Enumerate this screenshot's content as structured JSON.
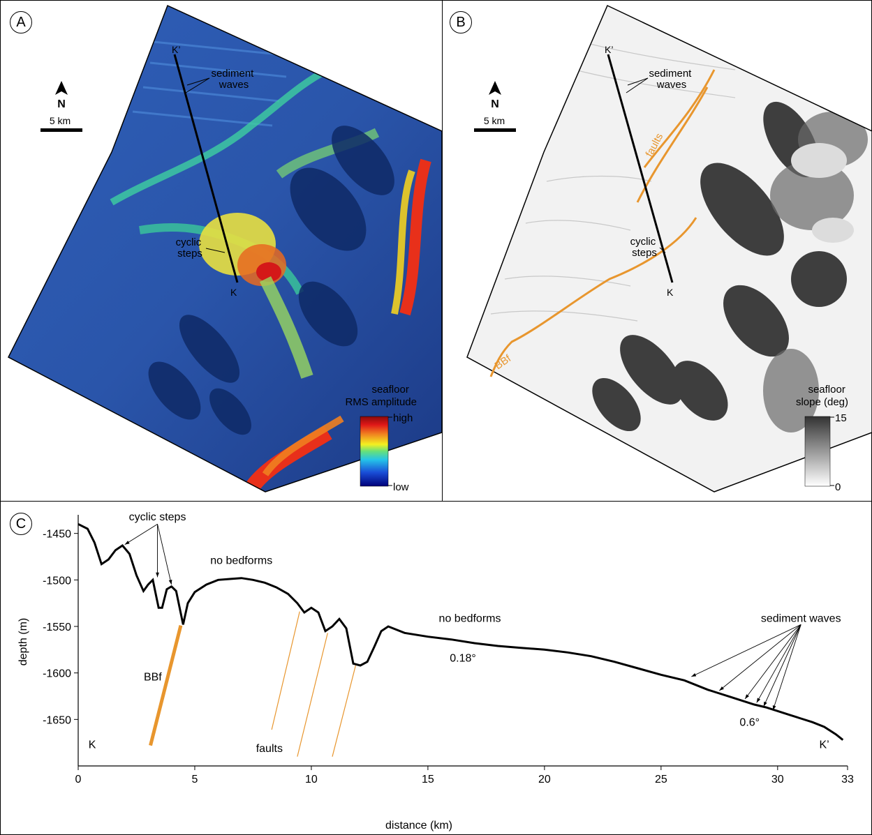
{
  "panels": {
    "a": {
      "letter": "A"
    },
    "b": {
      "letter": "B"
    },
    "c": {
      "letter": "C"
    }
  },
  "maps": {
    "north_label": "N",
    "scale_label": "5 km",
    "line_start_label": "K",
    "line_end_label": "K’",
    "sediment_waves_label": [
      "sediment",
      "waves"
    ],
    "cyclic_steps_label": [
      "cyclic",
      "steps"
    ],
    "faults_label": "faults",
    "bbf_label": "BBf",
    "rms_legend": {
      "title": [
        "seafloor",
        "RMS amplitude"
      ],
      "high": "high",
      "low": "low"
    },
    "slope_legend": {
      "title": [
        "seafloor",
        "slope (deg)"
      ],
      "max": "15",
      "min": "0"
    },
    "fault_color": "#e8962e"
  },
  "chart_data": {
    "type": "line",
    "xlabel": "distance (km)",
    "ylabel": "depth (m)",
    "xlim": [
      0,
      33
    ],
    "ylim": [
      -1700,
      -1430
    ],
    "xticks": [
      0,
      5,
      10,
      15,
      20,
      25,
      30,
      33
    ],
    "yticks": [
      -1450,
      -1500,
      -1550,
      -1600,
      -1650
    ],
    "series": [
      {
        "x": [
          0,
          0.4,
          0.7,
          1.0,
          1.3,
          1.6,
          1.9,
          2.2,
          2.5,
          2.8,
          3.0,
          3.2,
          3.3,
          3.45,
          3.6,
          3.8,
          4.0,
          4.2,
          4.35,
          4.5,
          4.7,
          5.0,
          5.5,
          6.0,
          6.5,
          7.0,
          7.5,
          8.0,
          8.5,
          9.0,
          9.4,
          9.7,
          10.0,
          10.3,
          10.6,
          10.9,
          11.2,
          11.5,
          11.8,
          12.1,
          12.4,
          12.7,
          13.0,
          13.3,
          14,
          15,
          16,
          17,
          18,
          19,
          20,
          21,
          22,
          23,
          24,
          25,
          26,
          27,
          27.5,
          28,
          28.5,
          29,
          29.5,
          30,
          30.5,
          31,
          31.5,
          32,
          32.5,
          32.8
        ],
        "y": [
          -1440,
          -1445,
          -1460,
          -1483,
          -1478,
          -1468,
          -1463,
          -1472,
          -1495,
          -1512,
          -1505,
          -1500,
          -1512,
          -1530,
          -1530,
          -1510,
          -1507,
          -1512,
          -1530,
          -1548,
          -1525,
          -1513,
          -1505,
          -1500,
          -1499,
          -1498,
          -1500,
          -1503,
          -1508,
          -1515,
          -1525,
          -1535,
          -1530,
          -1535,
          -1555,
          -1550,
          -1542,
          -1552,
          -1590,
          -1592,
          -1588,
          -1572,
          -1555,
          -1550,
          -1557,
          -1561,
          -1564,
          -1568,
          -1571,
          -1573,
          -1575,
          -1578,
          -1582,
          -1588,
          -1595,
          -1602,
          -1608,
          -1618,
          -1622,
          -1626,
          -1630,
          -1634,
          -1637,
          -1641,
          -1645,
          -1649,
          -1653,
          -1658,
          -1666,
          -1672
        ]
      }
    ],
    "annotations": [
      {
        "text": "cyclic steps",
        "x": 3.4,
        "y": -1436
      },
      {
        "text": "no bedforms",
        "x": 7.0,
        "y": -1483
      },
      {
        "text": "no bedforms",
        "x": 16.8,
        "y": -1545
      },
      {
        "text": "0.18°",
        "x": 16.5,
        "y": -1588
      },
      {
        "text": "sediment waves",
        "x": 31.0,
        "y": -1545
      },
      {
        "text": "0.6°",
        "x": 28.8,
        "y": -1657
      },
      {
        "text": "BBf",
        "x": 3.2,
        "y": -1608
      },
      {
        "text": "faults",
        "x": 8.2,
        "y": -1685
      },
      {
        "text": "K",
        "x": 0.6,
        "y": -1681
      },
      {
        "text": "K’",
        "x": 32.0,
        "y": -1681
      }
    ],
    "faults": [
      {
        "name": "BBf",
        "top": [
          4.4,
          -1549
        ],
        "bottom": [
          3.1,
          -1678
        ]
      },
      {
        "name": "fault",
        "top": [
          9.5,
          -1534
        ],
        "bottom": [
          8.3,
          -1661
        ]
      },
      {
        "name": "fault",
        "top": [
          10.7,
          -1557
        ],
        "bottom": [
          9.4,
          -1690
        ]
      },
      {
        "name": "fault",
        "top": [
          11.9,
          -1592
        ],
        "bottom": [
          10.9,
          -1690
        ]
      }
    ],
    "arrows": [
      {
        "from": [
          3.4,
          -1440
        ],
        "to": [
          2.0,
          -1462
        ]
      },
      {
        "from": [
          3.4,
          -1440
        ],
        "to": [
          3.4,
          -1497
        ]
      },
      {
        "from": [
          3.4,
          -1440
        ],
        "to": [
          4.0,
          -1505
        ]
      },
      {
        "from": [
          31.0,
          -1548
        ],
        "to": [
          26.3,
          -1604
        ]
      },
      {
        "from": [
          31.0,
          -1548
        ],
        "to": [
          27.5,
          -1619
        ]
      },
      {
        "from": [
          31.0,
          -1548
        ],
        "to": [
          28.6,
          -1628
        ]
      },
      {
        "from": [
          31.0,
          -1548
        ],
        "to": [
          29.1,
          -1632
        ]
      },
      {
        "from": [
          31.0,
          -1548
        ],
        "to": [
          29.4,
          -1636
        ]
      },
      {
        "from": [
          31.0,
          -1548
        ],
        "to": [
          29.8,
          -1640
        ]
      }
    ]
  }
}
